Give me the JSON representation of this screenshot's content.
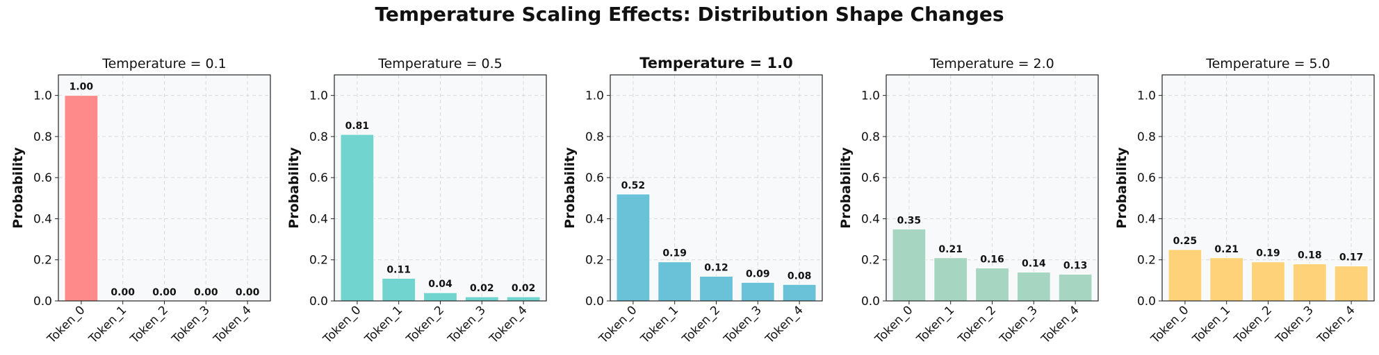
{
  "suptitle": "Temperature Scaling Effects: Distribution Shape Changes",
  "chart_data": [
    {
      "type": "bar",
      "title": "Temperature = 0.1",
      "title_bold": false,
      "ylabel": "Probability",
      "xlabel": "",
      "categories": [
        "Token_0",
        "Token_1",
        "Token_2",
        "Token_3",
        "Token_4"
      ],
      "values": [
        1.0,
        0.0,
        0.0,
        0.0,
        0.0
      ],
      "labels": [
        "1.00",
        "0.00",
        "0.00",
        "0.00",
        "0.00"
      ],
      "ylim": [
        0,
        1.1
      ],
      "yticks": [
        "0.0",
        "0.2",
        "0.4",
        "0.6",
        "0.8",
        "1.0"
      ],
      "color": "#FF8A8A",
      "grid": true
    },
    {
      "type": "bar",
      "title": "Temperature = 0.5",
      "title_bold": false,
      "ylabel": "Probability",
      "xlabel": "",
      "categories": [
        "Token_0",
        "Token_1",
        "Token_2",
        "Token_3",
        "Token_4"
      ],
      "values": [
        0.81,
        0.11,
        0.04,
        0.02,
        0.02
      ],
      "labels": [
        "0.81",
        "0.11",
        "0.04",
        "0.02",
        "0.02"
      ],
      "ylim": [
        0,
        1.1
      ],
      "yticks": [
        "0.0",
        "0.2",
        "0.4",
        "0.6",
        "0.8",
        "1.0"
      ],
      "color": "#72D4CE",
      "grid": true
    },
    {
      "type": "bar",
      "title": "Temperature = 1.0",
      "title_bold": true,
      "ylabel": "Probability",
      "xlabel": "",
      "categories": [
        "Token_0",
        "Token_1",
        "Token_2",
        "Token_3",
        "Token_4"
      ],
      "values": [
        0.52,
        0.19,
        0.12,
        0.09,
        0.08
      ],
      "labels": [
        "0.52",
        "0.19",
        "0.12",
        "0.09",
        "0.08"
      ],
      "ylim": [
        0,
        1.1
      ],
      "yticks": [
        "0.0",
        "0.2",
        "0.4",
        "0.6",
        "0.8",
        "1.0"
      ],
      "color": "#6AC2D8",
      "grid": true
    },
    {
      "type": "bar",
      "title": "Temperature = 2.0",
      "title_bold": false,
      "ylabel": "Probability",
      "xlabel": "",
      "categories": [
        "Token_0",
        "Token_1",
        "Token_2",
        "Token_3",
        "Token_4"
      ],
      "values": [
        0.35,
        0.21,
        0.16,
        0.14,
        0.13
      ],
      "labels": [
        "0.35",
        "0.21",
        "0.16",
        "0.14",
        "0.13"
      ],
      "ylim": [
        0,
        1.1
      ],
      "yticks": [
        "0.0",
        "0.2",
        "0.4",
        "0.6",
        "0.8",
        "1.0"
      ],
      "color": "#A6D6C2",
      "grid": true
    },
    {
      "type": "bar",
      "title": "Temperature = 5.0",
      "title_bold": false,
      "ylabel": "Probability",
      "xlabel": "",
      "categories": [
        "Token_0",
        "Token_1",
        "Token_2",
        "Token_3",
        "Token_4"
      ],
      "values": [
        0.25,
        0.21,
        0.19,
        0.18,
        0.17
      ],
      "labels": [
        "0.25",
        "0.21",
        "0.19",
        "0.18",
        "0.17"
      ],
      "ylim": [
        0,
        1.1
      ],
      "yticks": [
        "0.0",
        "0.2",
        "0.4",
        "0.6",
        "0.8",
        "1.0"
      ],
      "color": "#FDD278",
      "grid": true
    }
  ]
}
